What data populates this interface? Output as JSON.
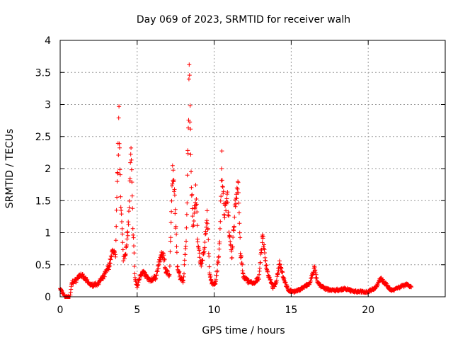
{
  "chart_data": {
    "type": "scatter",
    "title": "Day 069 of 2023, SRMTID for receiver walh",
    "xlabel": "GPS time / hours",
    "ylabel": "SRMTID / TECUs",
    "xlim": [
      0,
      25
    ],
    "ylim": [
      0,
      4
    ],
    "xticks": [
      0,
      5,
      10,
      15,
      20
    ],
    "xtick_labels": [
      "0",
      "5",
      "10",
      "15",
      "20"
    ],
    "yticks": [
      0,
      0.5,
      1,
      1.5,
      2,
      2.5,
      3,
      3.5,
      4
    ],
    "ytick_labels": [
      "0",
      "0.5",
      "1",
      "1.5",
      "2",
      "2.5",
      "3",
      "3.5",
      "4"
    ],
    "grid": true,
    "legend": "none",
    "marker": "+",
    "color": "#ff0000",
    "series": [
      {
        "name": "SRMTID",
        "profile": [
          [
            0.0,
            0.13
          ],
          [
            0.3,
            0.0
          ],
          [
            0.65,
            0.0
          ],
          [
            0.75,
            0.22
          ],
          [
            1.0,
            0.25
          ],
          [
            1.3,
            0.35
          ],
          [
            1.6,
            0.28
          ],
          [
            2.0,
            0.18
          ],
          [
            2.4,
            0.2
          ],
          [
            2.8,
            0.3
          ],
          [
            3.2,
            0.5
          ],
          [
            3.45,
            0.75
          ],
          [
            3.6,
            0.6
          ],
          [
            3.7,
            1.7
          ],
          [
            3.82,
            2.75
          ],
          [
            3.95,
            1.4
          ],
          [
            4.1,
            0.6
          ],
          [
            4.3,
            0.75
          ],
          [
            4.45,
            1.2
          ],
          [
            4.6,
            2.25
          ],
          [
            4.7,
            1.3
          ],
          [
            4.85,
            0.3
          ],
          [
            5.0,
            0.15
          ],
          [
            5.2,
            0.35
          ],
          [
            5.4,
            0.38
          ],
          [
            5.8,
            0.25
          ],
          [
            6.2,
            0.3
          ],
          [
            6.5,
            0.6
          ],
          [
            6.7,
            0.68
          ],
          [
            6.85,
            0.4
          ],
          [
            7.1,
            0.35
          ],
          [
            7.3,
            1.95
          ],
          [
            7.45,
            1.5
          ],
          [
            7.6,
            0.5
          ],
          [
            7.8,
            0.3
          ],
          [
            8.0,
            0.25
          ],
          [
            8.2,
            1.0
          ],
          [
            8.38,
            3.5
          ],
          [
            8.5,
            2.0
          ],
          [
            8.65,
            1.0
          ],
          [
            8.8,
            1.7
          ],
          [
            8.95,
            0.8
          ],
          [
            9.15,
            0.5
          ],
          [
            9.35,
            0.7
          ],
          [
            9.55,
            1.3
          ],
          [
            9.7,
            0.35
          ],
          [
            9.9,
            0.18
          ],
          [
            10.1,
            0.22
          ],
          [
            10.35,
            0.8
          ],
          [
            10.5,
            2.12
          ],
          [
            10.65,
            1.2
          ],
          [
            10.85,
            1.65
          ],
          [
            11.0,
            0.9
          ],
          [
            11.15,
            0.6
          ],
          [
            11.35,
            1.4
          ],
          [
            11.55,
            1.85
          ],
          [
            11.7,
            0.7
          ],
          [
            11.9,
            0.3
          ],
          [
            12.2,
            0.25
          ],
          [
            12.6,
            0.2
          ],
          [
            12.9,
            0.3
          ],
          [
            13.15,
            0.98
          ],
          [
            13.3,
            0.6
          ],
          [
            13.5,
            0.35
          ],
          [
            13.8,
            0.15
          ],
          [
            14.0,
            0.2
          ],
          [
            14.25,
            0.55
          ],
          [
            14.5,
            0.3
          ],
          [
            14.8,
            0.1
          ],
          [
            15.3,
            0.08
          ],
          [
            15.8,
            0.15
          ],
          [
            16.2,
            0.2
          ],
          [
            16.5,
            0.45
          ],
          [
            16.7,
            0.22
          ],
          [
            17.2,
            0.12
          ],
          [
            17.8,
            0.1
          ],
          [
            18.5,
            0.12
          ],
          [
            19.2,
            0.08
          ],
          [
            20.0,
            0.08
          ],
          [
            20.5,
            0.15
          ],
          [
            20.8,
            0.28
          ],
          [
            21.2,
            0.18
          ],
          [
            21.5,
            0.1
          ],
          [
            22.0,
            0.15
          ],
          [
            22.5,
            0.2
          ],
          [
            22.8,
            0.15
          ]
        ]
      }
    ]
  }
}
